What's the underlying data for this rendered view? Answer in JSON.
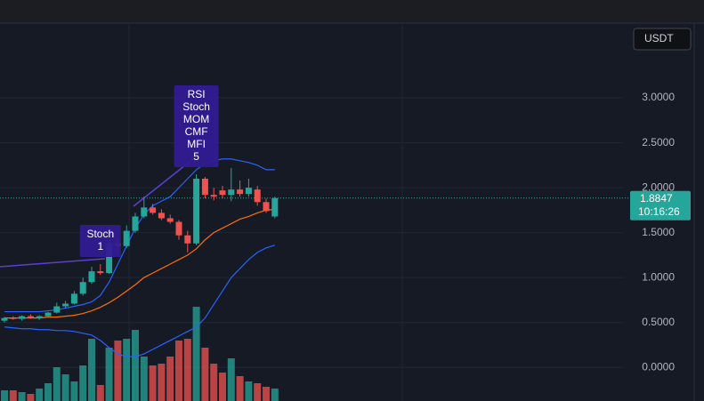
{
  "chart_data": {
    "type": "candlestick",
    "currency": "USDT",
    "last_price": 1.8847,
    "countdown": "10:16:26",
    "annotations": [
      {
        "lines": [
          "Stoch",
          "1"
        ],
        "index": 11
      },
      {
        "lines": [
          "RSI",
          "Stoch",
          "MOM",
          "CMF",
          "MFI",
          "5"
        ],
        "index": 22
      }
    ],
    "ylim": [
      -0.3738,
      3.8318
    ],
    "yticks": [
      {
        "value": 0,
        "label": "0.0000"
      },
      {
        "value": 0.5,
        "label": "0.5000"
      },
      {
        "value": 1,
        "label": "1.0000"
      },
      {
        "value": 1.5,
        "label": "1.5000"
      },
      {
        "value": 2,
        "label": "2.0000"
      },
      {
        "value": 2.5,
        "label": "2.5000"
      },
      {
        "value": 3,
        "label": "3.0000"
      }
    ],
    "grid": true,
    "up_color": "#26a69a",
    "down_color": "#ef5350",
    "open": [
      0.52,
      0.55,
      0.54,
      0.57,
      0.55,
      0.57,
      0.61,
      0.68,
      0.71,
      0.82,
      0.95,
      1.07,
      1.05,
      1.38,
      1.35,
      1.52,
      1.68,
      1.78,
      1.72,
      1.66,
      1.62,
      1.47,
      1.38,
      2.1,
      1.92,
      1.97,
      1.92,
      1.98,
      1.93,
      1.98,
      1.84,
      1.68
    ],
    "high": [
      0.56,
      0.57,
      0.58,
      0.59,
      0.58,
      0.62,
      0.72,
      0.74,
      0.85,
      1.0,
      1.12,
      1.15,
      1.42,
      1.45,
      1.58,
      1.72,
      1.9,
      1.82,
      1.76,
      1.7,
      1.64,
      1.52,
      2.15,
      2.12,
      2.0,
      2.02,
      2.22,
      2.08,
      2.1,
      2.02,
      1.88,
      1.9
    ],
    "low": [
      0.5,
      0.53,
      0.52,
      0.54,
      0.53,
      0.56,
      0.6,
      0.66,
      0.7,
      0.8,
      0.93,
      1.03,
      1.04,
      1.3,
      1.33,
      1.5,
      1.66,
      1.7,
      1.64,
      1.6,
      1.42,
      1.28,
      1.36,
      1.88,
      1.86,
      1.88,
      1.85,
      1.9,
      1.9,
      1.8,
      1.72,
      1.66
    ],
    "close": [
      0.55,
      0.54,
      0.57,
      0.55,
      0.57,
      0.61,
      0.68,
      0.71,
      0.82,
      0.95,
      1.07,
      1.05,
      1.38,
      1.35,
      1.52,
      1.68,
      1.78,
      1.72,
      1.66,
      1.62,
      1.47,
      1.38,
      2.1,
      1.92,
      1.9,
      1.92,
      1.98,
      1.93,
      2.0,
      1.84,
      1.74,
      1.8847
    ],
    "volume": [
      12,
      12,
      10,
      8,
      14,
      20,
      38,
      30,
      22,
      40,
      70,
      18,
      60,
      68,
      70,
      80,
      50,
      40,
      42,
      50,
      68,
      70,
      106,
      60,
      42,
      32,
      48,
      28,
      22,
      20,
      16,
      14
    ],
    "bands": [
      {
        "color": "#2962ff",
        "values": [
          0.62,
          0.62,
          0.62,
          0.62,
          0.62,
          0.63,
          0.64,
          0.66,
          0.68,
          0.7,
          0.73,
          0.8,
          0.95,
          1.15,
          1.35,
          1.55,
          1.7,
          1.8,
          1.85,
          1.9,
          2.0,
          2.1,
          2.2,
          2.27,
          2.3,
          2.32,
          2.32,
          2.3,
          2.28,
          2.25,
          2.2,
          2.2
        ]
      },
      {
        "color": "#ff6d00",
        "values": [
          0.55,
          0.55,
          0.55,
          0.55,
          0.55,
          0.56,
          0.56,
          0.57,
          0.58,
          0.6,
          0.63,
          0.67,
          0.72,
          0.78,
          0.85,
          0.92,
          1.0,
          1.05,
          1.1,
          1.15,
          1.2,
          1.25,
          1.32,
          1.42,
          1.5,
          1.55,
          1.6,
          1.65,
          1.68,
          1.72,
          1.75,
          1.76
        ]
      },
      {
        "color": "#2962ff",
        "values": [
          0.45,
          0.44,
          0.43,
          0.43,
          0.42,
          0.42,
          0.41,
          0.41,
          0.4,
          0.38,
          0.36,
          0.3,
          0.22,
          0.15,
          0.12,
          0.12,
          0.15,
          0.2,
          0.25,
          0.3,
          0.35,
          0.4,
          0.45,
          0.55,
          0.7,
          0.85,
          1.0,
          1.1,
          1.2,
          1.28,
          1.33,
          1.36
        ]
      }
    ]
  }
}
